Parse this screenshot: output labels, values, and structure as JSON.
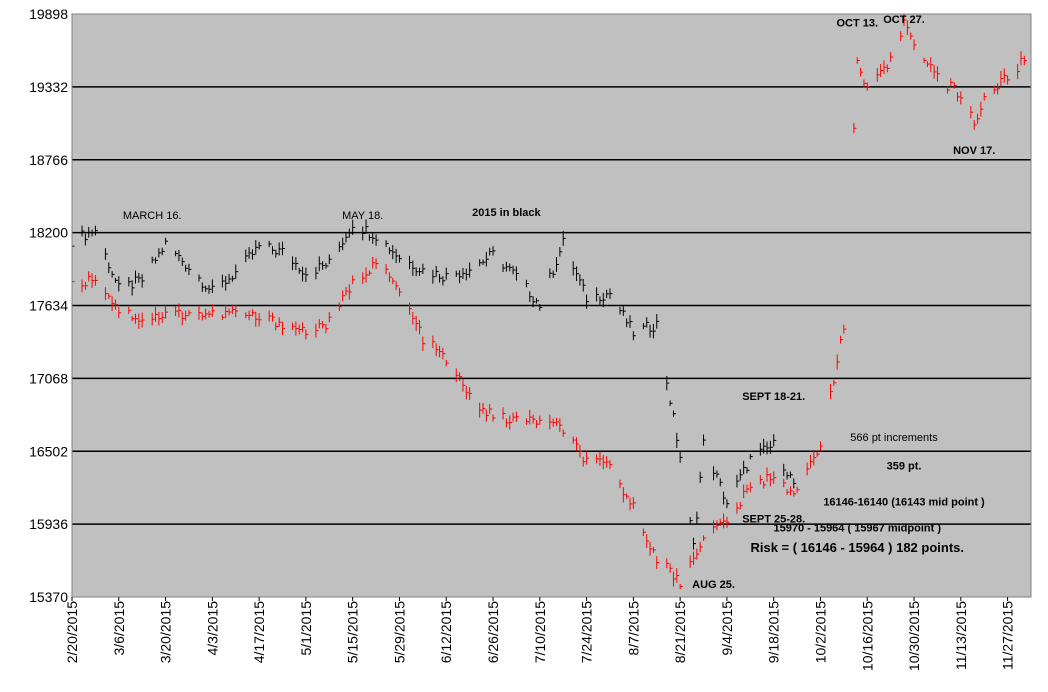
{
  "chart_data": {
    "type": "line",
    "title": "",
    "xlabel": "",
    "ylabel": "",
    "ylim": [
      15370,
      19898
    ],
    "y_ticks": [
      15370,
      15936,
      16502,
      17068,
      17634,
      18200,
      18766,
      19332,
      19898
    ],
    "y_tick_labels": [
      "15370",
      "15936",
      "16502",
      "17068",
      "17634",
      "18200",
      "18766",
      "19332",
      "19898"
    ],
    "x_tick_labels": [
      "2/20/2015",
      "3/6/2015",
      "3/20/2015",
      "4/3/2015",
      "4/17/2015",
      "5/1/2015",
      "5/15/2015",
      "5/29/2015",
      "6/12/2015",
      "6/26/2015",
      "7/10/2015",
      "7/24/2015",
      "8/7/2015",
      "8/21/2015",
      "9/4/2015",
      "9/18/2015",
      "10/2/2015",
      "10/16/2015",
      "10/30/2015",
      "11/13/2015",
      "11/27/2015"
    ],
    "grid": true,
    "plot_background": "#c0c0c0",
    "series": [
      {
        "name": "2015",
        "color": "#000000",
        "x": [
          "2/20/2015",
          "2/27/2015",
          "3/6/2015",
          "3/13/2015",
          "3/20/2015",
          "3/27/2015",
          "4/3/2015",
          "4/10/2015",
          "4/17/2015",
          "4/24/2015",
          "5/1/2015",
          "5/8/2015",
          "5/15/2015",
          "5/22/2015",
          "5/29/2015",
          "6/5/2015",
          "6/12/2015",
          "6/19/2015",
          "6/26/2015",
          "7/3/2015",
          "7/10/2015",
          "7/17/2015",
          "7/24/2015",
          "7/31/2015",
          "8/7/2015",
          "8/14/2015",
          "8/21/2015",
          "8/25/2015",
          "8/28/2015",
          "9/4/2015",
          "9/11/2015",
          "9/18/2015",
          "9/25/2015"
        ],
        "values": [
          18140,
          18220,
          17760,
          17830,
          18110,
          17930,
          17740,
          17890,
          18090,
          18050,
          17890,
          17960,
          18270,
          18180,
          18010,
          17910,
          17860,
          17920,
          18030,
          17860,
          17640,
          18120,
          17690,
          17730,
          17420,
          17490,
          16460,
          15760,
          16560,
          16100,
          16440,
          16550,
          16200
        ]
      },
      {
        "name": "",
        "color": "#ff0000",
        "x": [
          "2/20/2015",
          "2/27/2015",
          "3/6/2015",
          "3/13/2015",
          "3/20/2015",
          "3/27/2015",
          "4/3/2015",
          "4/10/2015",
          "4/17/2015",
          "4/24/2015",
          "5/1/2015",
          "5/8/2015",
          "5/15/2015",
          "5/22/2015",
          "5/29/2015",
          "6/5/2015",
          "6/12/2015",
          "6/19/2015",
          "6/26/2015",
          "7/3/2015",
          "7/10/2015",
          "7/17/2015",
          "7/24/2015",
          "7/31/2015",
          "8/7/2015",
          "8/14/2015",
          "8/21/2015",
          "8/28/2015",
          "9/4/2015",
          "9/11/2015",
          "9/18/2015",
          "9/25/2015",
          "10/2/2015",
          "10/9/2015",
          "10/13/2015",
          "10/16/2015",
          "10/23/2015",
          "10/27/2015",
          "10/30/2015",
          "11/6/2015",
          "11/13/2015",
          "11/17/2015",
          "11/20/2015",
          "11/27/2015",
          "12/3/2015"
        ],
        "values": [
          17780,
          17860,
          17600,
          17530,
          17560,
          17580,
          17560,
          17580,
          17530,
          17500,
          17430,
          17500,
          17800,
          17980,
          17740,
          17380,
          17210,
          16920,
          16770,
          16740,
          16740,
          16670,
          16420,
          16380,
          16060,
          15680,
          15480,
          15840,
          15960,
          16220,
          16320,
          16160,
          16580,
          17450,
          19530,
          19290,
          19520,
          19840,
          19700,
          19400,
          19270,
          19050,
          19240,
          19410,
          19560
        ]
      }
    ],
    "annotations": [
      {
        "text": "MARCH 16.",
        "x": "3/16/2015",
        "y": 18305
      },
      {
        "text": "MAY 18.",
        "x": "5/18/2015",
        "y": 18305
      },
      {
        "text": "2015 in black",
        "x": "6/30/2015",
        "y": 18330
      },
      {
        "text": "OCT 13.",
        "x": "10/13/2015",
        "y": 19800
      },
      {
        "text": "OCT 27.",
        "x": "10/27/2015",
        "y": 19830
      },
      {
        "text": "NOV 17.",
        "x": "11/17/2015",
        "y": 18810
      },
      {
        "text": "SEPT 18-21.",
        "x": "9/18/2015",
        "y": 16900
      },
      {
        "text": "566 pt increments",
        "x": "10/24/2015",
        "y": 16580
      },
      {
        "text": "359 pt.",
        "x": "10/27/2015",
        "y": 16360
      },
      {
        "text": "16146-16140 (16143 mid point )",
        "x": "10/27/2015",
        "y": 16080
      },
      {
        "text": "SEPT 25-28.",
        "x": "9/18/2015",
        "y": 15950
      },
      {
        "text": "15970 - 15964 ( 15967 midpoint )",
        "x": "10/13/2015",
        "y": 15880
      },
      {
        "text": "Risk = ( 16146 - 15964 ) 182 points.",
        "x": "10/13/2015",
        "y": 15720
      },
      {
        "text": "AUG 25.",
        "x": "8/31/2015",
        "y": 15440
      }
    ]
  }
}
